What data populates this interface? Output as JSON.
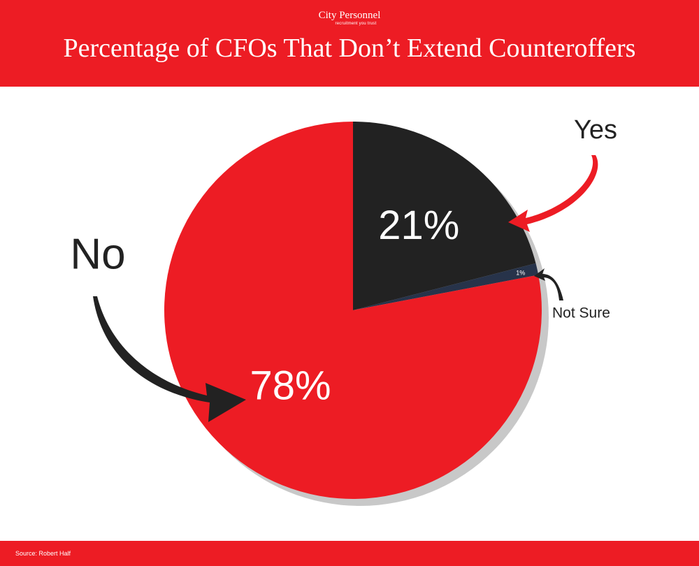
{
  "header": {
    "logo_text": "City Personnel",
    "logo_tagline": "recruitment you trust",
    "title": "Percentage of CFOs That Don’t Extend Counteroffers"
  },
  "footer": {
    "source": "Source: Robert Half"
  },
  "colors": {
    "brand_red": "#ed1c24",
    "yes_slice": "#222222",
    "not_sure_slice": "#27334a",
    "no_slice": "#ed1c24",
    "shadow": "#c8c8c8"
  },
  "chart_data": {
    "type": "pie",
    "title": "Percentage of CFOs That Don’t Extend Counteroffers",
    "slices": [
      {
        "label": "Yes",
        "value": 21,
        "value_label": "21%",
        "color": "#222222"
      },
      {
        "label": "Not Sure",
        "value": 1,
        "value_label": "1%",
        "color": "#27334a"
      },
      {
        "label": "No",
        "value": 78,
        "value_label": "78%",
        "color": "#ed1c24"
      }
    ],
    "legend": "none",
    "labels": [
      "Yes",
      "Not Sure",
      "No"
    ],
    "start_angle": "12 o'clock",
    "direction": "clockwise"
  }
}
